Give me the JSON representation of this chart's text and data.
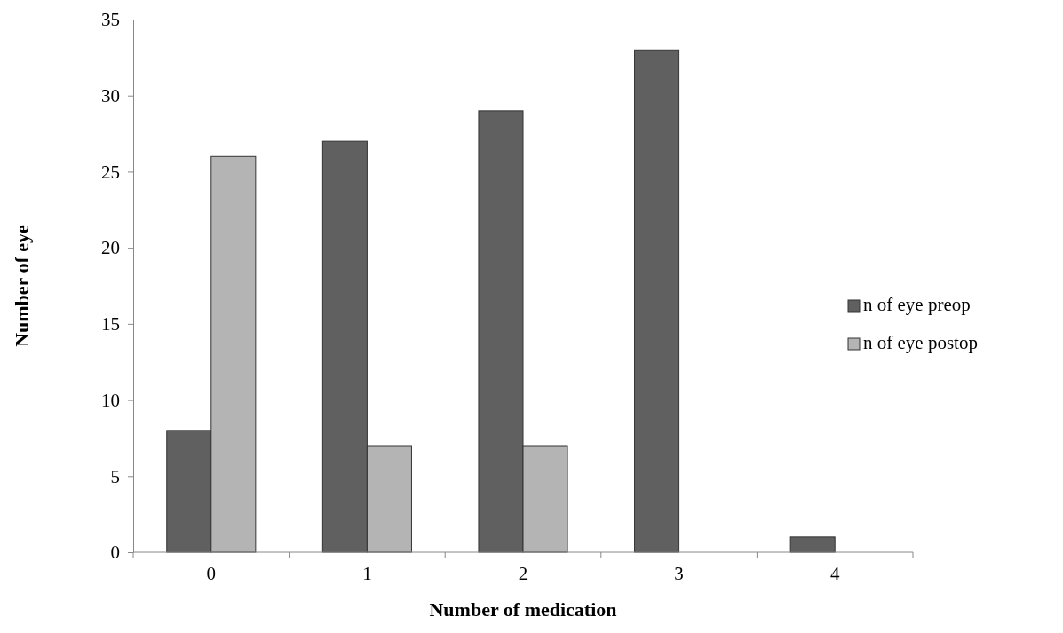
{
  "chart_data": {
    "type": "bar",
    "xlabel": "Number of medication",
    "ylabel": "Number of eye",
    "categories": [
      "0",
      "1",
      "2",
      "3",
      "4"
    ],
    "series": [
      {
        "name": "n of eye preop",
        "color": "#606060",
        "values": [
          8,
          27,
          29,
          33,
          1
        ]
      },
      {
        "name": "n of eye postop",
        "color": "#b4b4b4",
        "values": [
          26,
          7,
          7,
          0,
          0
        ]
      }
    ],
    "ylim": [
      0,
      35
    ],
    "yticks": [
      0,
      5,
      10,
      15,
      20,
      25,
      30,
      35
    ],
    "grid": false,
    "legend": "right"
  }
}
